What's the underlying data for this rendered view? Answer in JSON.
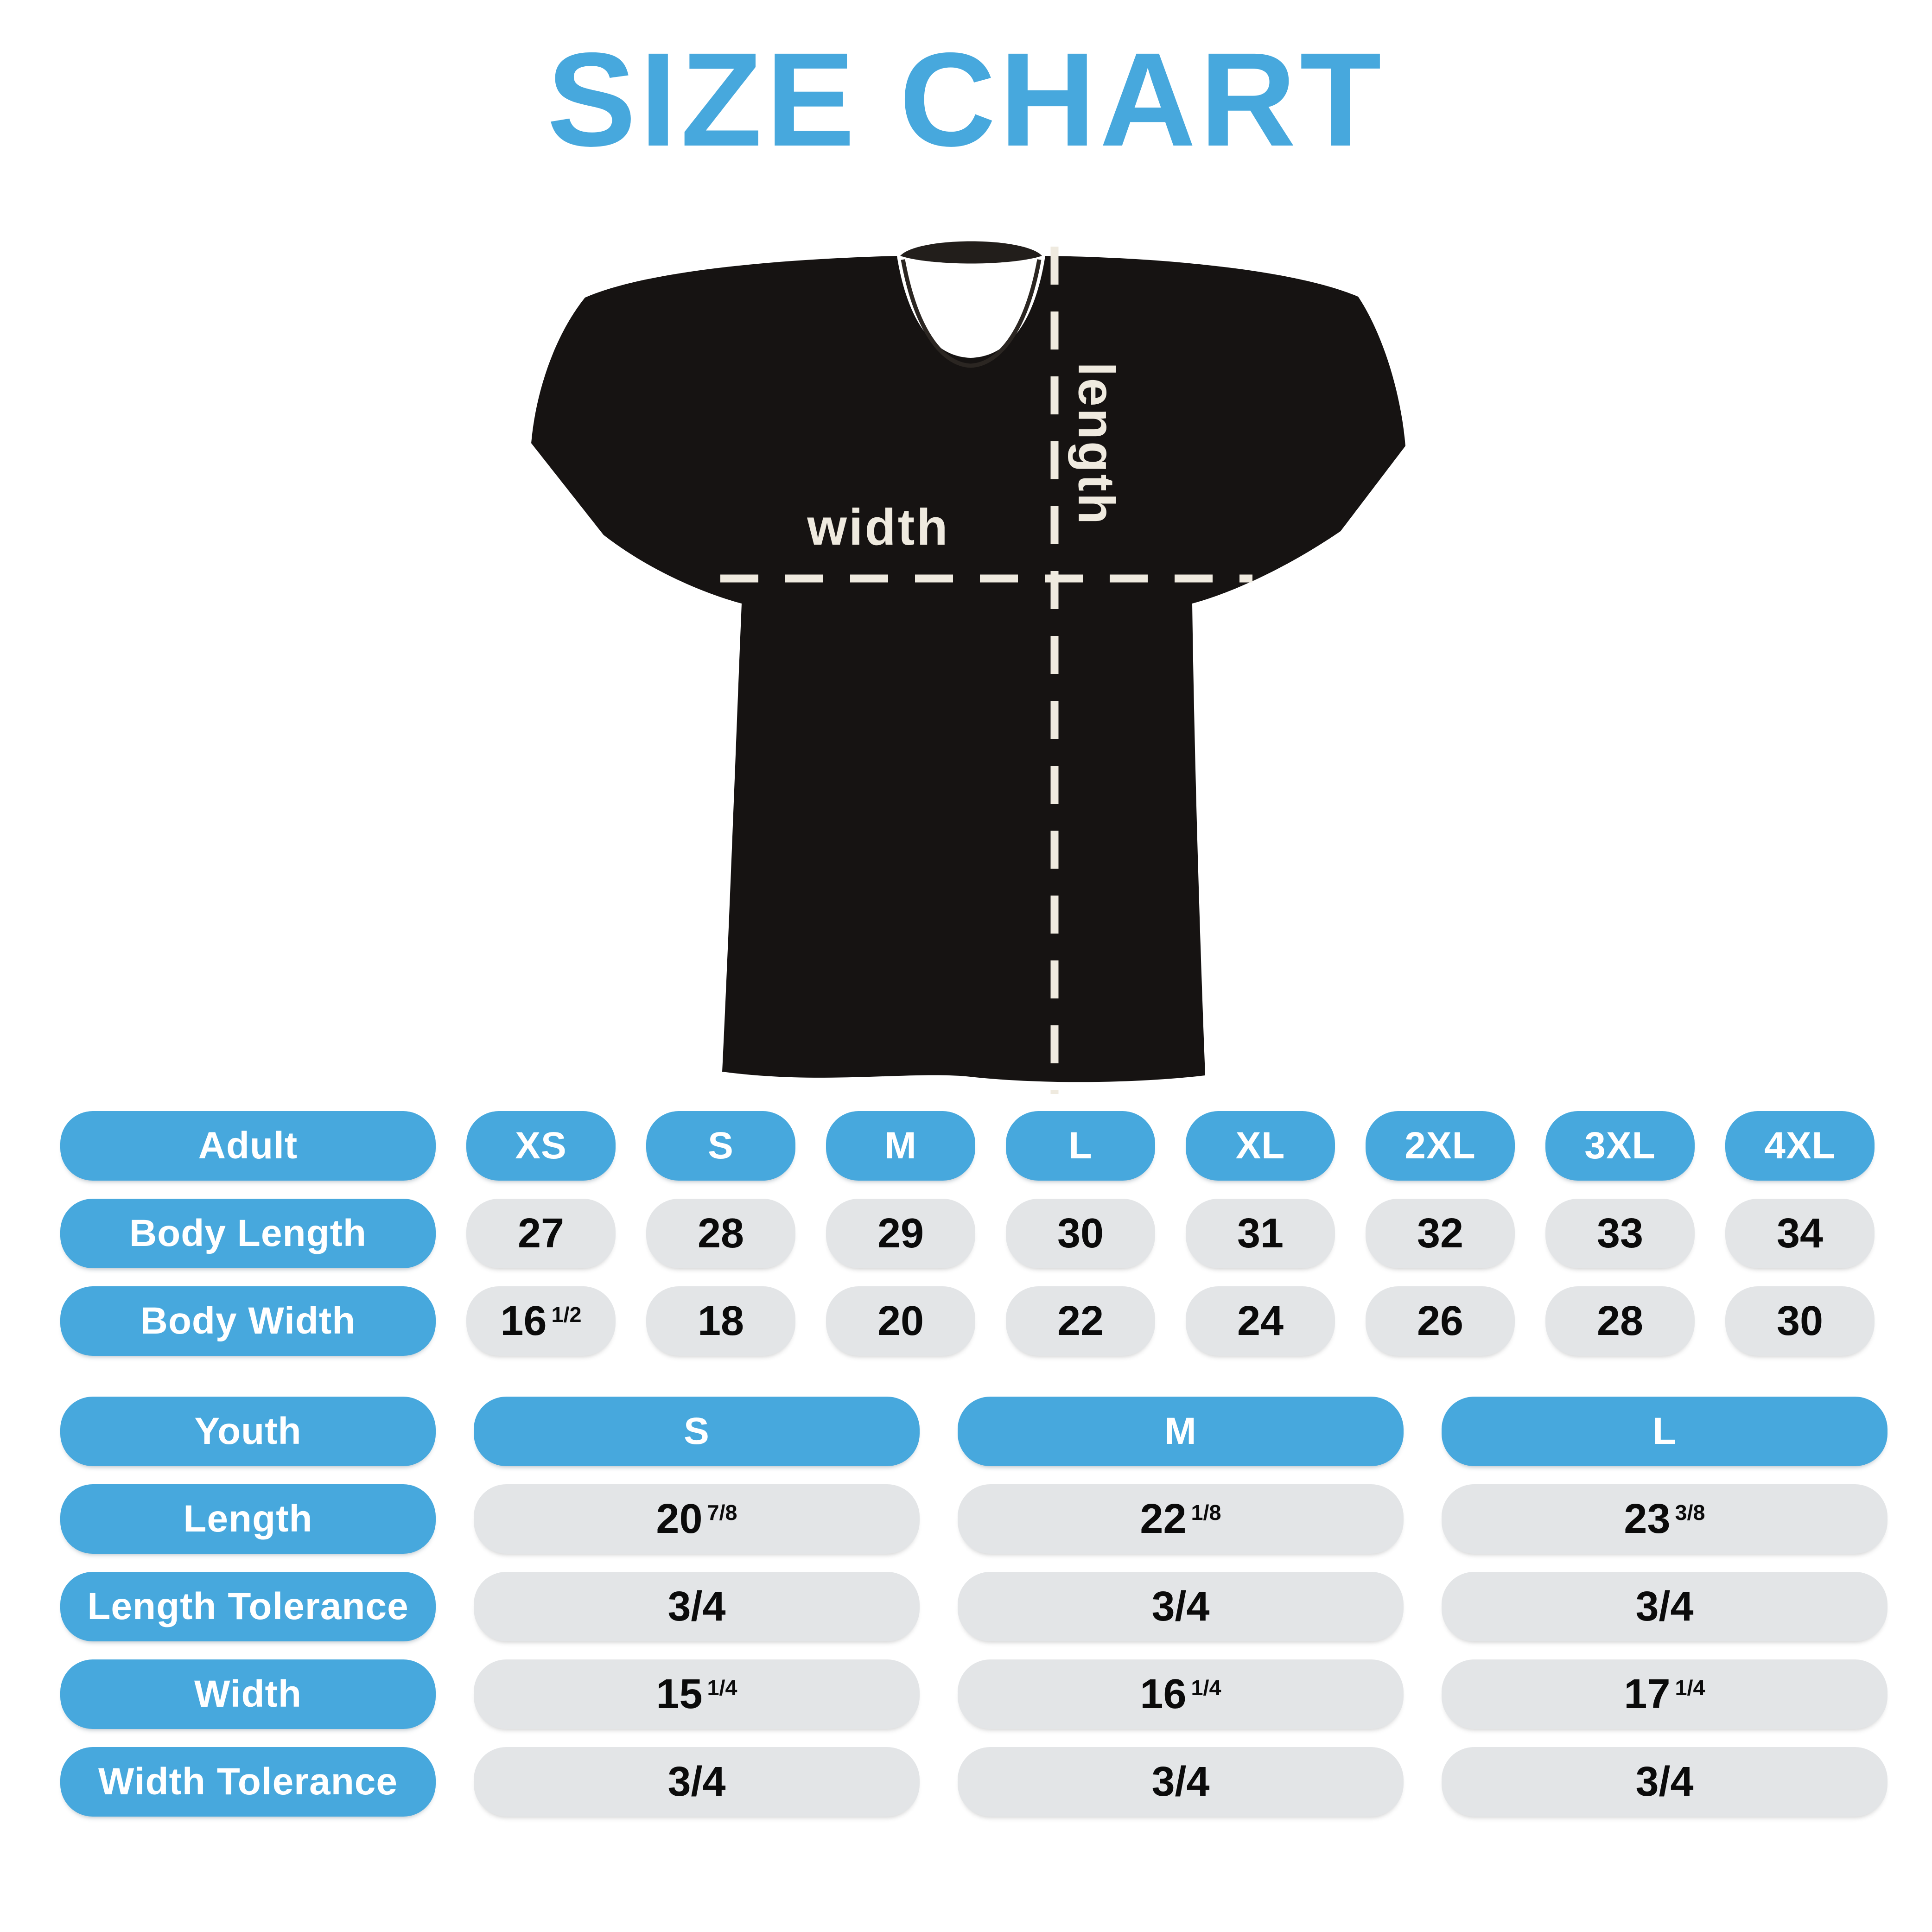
{
  "title": "SIZE CHART",
  "colors": {
    "accent_blue": "#47A8DD",
    "pill_gray": "#E3E5E7",
    "shirt_black": "#161312",
    "measure_cream": "#EFEADF"
  },
  "diagram": {
    "length_label": "length",
    "width_label": "width"
  },
  "adult": {
    "row_header": "Adult",
    "sizes": [
      "XS",
      "S",
      "M",
      "L",
      "XL",
      "2XL",
      "3XL",
      "4XL"
    ],
    "rows": [
      {
        "label": "Body Length",
        "values": [
          "27",
          "28",
          "29",
          "30",
          "31",
          "32",
          "33",
          "34"
        ]
      },
      {
        "label": "Body Width",
        "values": [
          "16 1/2",
          "18",
          "20",
          "22",
          "24",
          "26",
          "28",
          "30"
        ]
      }
    ]
  },
  "youth": {
    "row_header": "Youth",
    "sizes": [
      "S",
      "M",
      "L"
    ],
    "rows": [
      {
        "label": "Length",
        "values": [
          "20 7/8",
          "22 1/8",
          "23 3/8"
        ]
      },
      {
        "label": "Length Tolerance",
        "values": [
          "3/4",
          "3/4",
          "3/4"
        ]
      },
      {
        "label": "Width",
        "values": [
          "15 1/4",
          "16 1/4",
          "17 1/4"
        ]
      },
      {
        "label": "Width Tolerance",
        "values": [
          "3/4",
          "3/4",
          "3/4"
        ]
      }
    ]
  }
}
